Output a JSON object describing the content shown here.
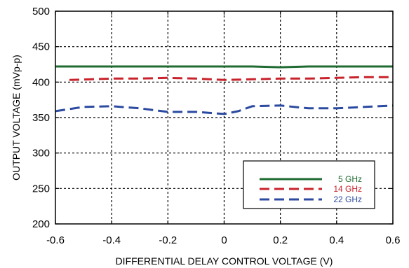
{
  "chart_data": {
    "type": "line",
    "title": "",
    "xlabel": "DIFFERENTIAL DELAY CONTROL VOLTAGE (V)",
    "ylabel": "OUTPUT VOLTAGE (mVp-p)",
    "xlim": [
      -0.6,
      0.6
    ],
    "ylim": [
      200,
      500
    ],
    "x_ticks": [
      "-0.6",
      "-0.4",
      "-0.2",
      "0",
      "0.2",
      "0.4",
      "0.6"
    ],
    "y_ticks": [
      "200",
      "250",
      "300",
      "350",
      "400",
      "450",
      "500"
    ],
    "grid": true,
    "legend_position": "bottom-right",
    "series": [
      {
        "name": "5 GHz",
        "color": "#1f6b32",
        "line_style": "solid",
        "x": [
          -0.6,
          -0.4,
          -0.2,
          0.0,
          0.1,
          0.2,
          0.3,
          0.4,
          0.5,
          0.6
        ],
        "y": [
          422,
          422,
          422,
          422,
          422,
          421,
          422,
          422,
          422,
          422
        ]
      },
      {
        "name": "14 GHz",
        "color": "#c8232c",
        "line_style": "dashed",
        "x": [
          -0.55,
          -0.4,
          -0.3,
          -0.2,
          -0.1,
          0.0,
          0.1,
          0.2,
          0.3,
          0.4,
          0.5,
          0.6
        ],
        "y": [
          403,
          405,
          405,
          406,
          405,
          403,
          404,
          405,
          405,
          406,
          407,
          407
        ]
      },
      {
        "name": "22 GHz",
        "color": "#2b4aa0",
        "line_style": "dashed",
        "x": [
          -0.6,
          -0.5,
          -0.4,
          -0.3,
          -0.2,
          -0.1,
          0.0,
          0.05,
          0.1,
          0.2,
          0.3,
          0.4,
          0.5,
          0.6
        ],
        "y": [
          359,
          365,
          366,
          363,
          358,
          358,
          355,
          359,
          366,
          367,
          363,
          363,
          365,
          367
        ]
      }
    ]
  }
}
